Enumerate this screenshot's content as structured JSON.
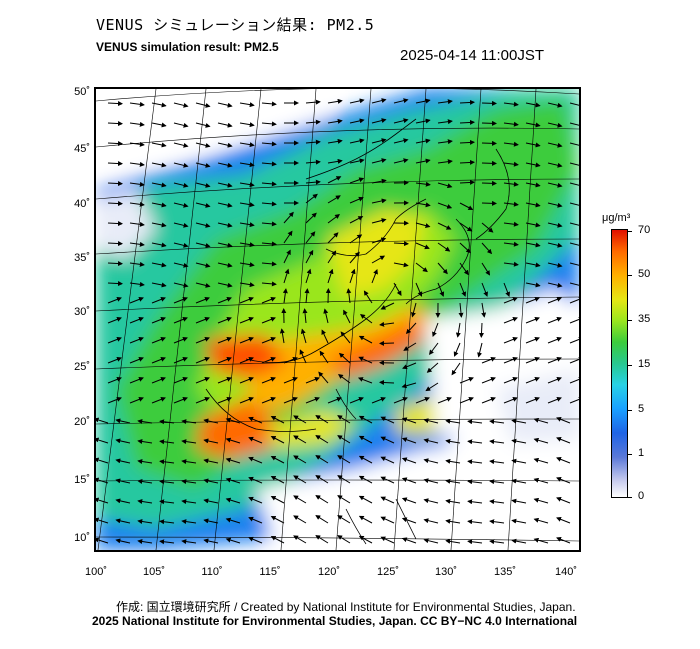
{
  "header": {
    "title_jp": "VENUS シミュレーション結果: PM2.5",
    "title_en": "VENUS simulation result: PM2.5",
    "timestamp": "2025-04-14 11:00JST"
  },
  "map": {
    "lat_labels": [
      "50˚",
      "45˚",
      "40˚",
      "35˚",
      "30˚",
      "25˚",
      "20˚",
      "15˚",
      "10˚"
    ],
    "lon_labels": [
      "100˚",
      "105˚",
      "110˚",
      "115˚",
      "120˚",
      "125˚",
      "130˚",
      "135˚",
      "140˚"
    ],
    "variable": "PM2.5",
    "lat_range": [
      9,
      51
    ],
    "lon_range": [
      100,
      141
    ]
  },
  "colorbar": {
    "unit": "μg/m³",
    "ticks": [
      "70",
      "50",
      "35",
      "15",
      "5",
      "1",
      "0"
    ],
    "colors": [
      "#e01000",
      "#ff6a00",
      "#ffb000",
      "#e6e614",
      "#9ae61e",
      "#3ccc3c",
      "#28c890",
      "#28d2e6",
      "#1aa0ff",
      "#1f64e6",
      "#5a78d8",
      "#c8ccee",
      "#ffffff"
    ]
  },
  "footer": {
    "credit_line1": "作成: 国立環境研究所 / Created by National Institute for Environmental Studies, Japan.",
    "credit_line2": "2025 National Institute for Environmental Studies, Japan. CC BY−NC 4.0 International"
  }
}
